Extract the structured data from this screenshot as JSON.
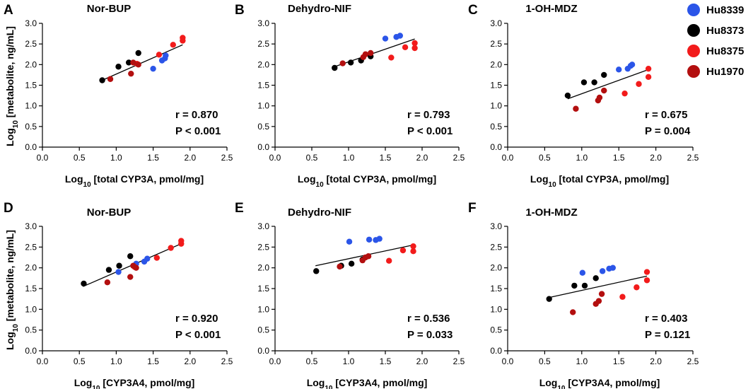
{
  "legend": {
    "items": [
      {
        "label": "Hu8339",
        "color": "#2b55e8"
      },
      {
        "label": "Hu8373",
        "color": "#000000"
      },
      {
        "label": "Hu8375",
        "color": "#f21b1b"
      },
      {
        "label": "Hu1970",
        "color": "#b30f0f"
      }
    ]
  },
  "axis_labels": {
    "y_prefix": "Log",
    "y_sub": "10",
    "y_rest": " [metabolite, ng/mL]",
    "x_total_prefix": "Log",
    "x_total_sub": "10",
    "x_total_rest": " [total CYP3A, pmol/mg]",
    "x_cyp3a4_prefix": "Log",
    "x_cyp3a4_sub": "10",
    "x_cyp3a4_rest": " [CYP3A4, pmol/mg]"
  },
  "chart_data": [
    {
      "type": "scatter",
      "letter": "A",
      "title": "Nor-BUP",
      "xlabel": "Log10 [total CYP3A, pmol/mg]",
      "ylabel": "Log10 [metabolite, ng/mL]",
      "xlim": [
        0,
        2.5
      ],
      "ylim": [
        0,
        3.0
      ],
      "xticks": [
        "0.0",
        "0.5",
        "1.0",
        "1.5",
        "2.0",
        "2.5"
      ],
      "yticks": [
        "0.0",
        "0.5",
        "1.0",
        "1.5",
        "2.0",
        "2.5",
        "3.0"
      ],
      "fit": [
        [
          0.81,
          1.62
        ],
        [
          1.9,
          2.48
        ]
      ],
      "stats": [
        "r = 0.870",
        "P <  0.001"
      ],
      "series": [
        {
          "name": "Hu8339",
          "color": "#2b55e8",
          "x": [
            1.5,
            1.62,
            1.66,
            1.67
          ],
          "y": [
            1.9,
            2.1,
            2.15,
            2.22
          ]
        },
        {
          "name": "Hu8373",
          "color": "#000000",
          "x": [
            0.81,
            1.03,
            1.17,
            1.3
          ],
          "y": [
            1.62,
            1.95,
            2.05,
            2.28
          ]
        },
        {
          "name": "Hu8375",
          "color": "#f21b1b",
          "x": [
            1.28,
            1.58,
            1.77,
            1.9,
            1.9
          ],
          "y": [
            2.02,
            2.24,
            2.48,
            2.58,
            2.65
          ]
        },
        {
          "name": "Hu1970",
          "color": "#b30f0f",
          "x": [
            0.92,
            1.2,
            1.23,
            1.3
          ],
          "y": [
            1.65,
            1.78,
            2.05,
            2.0
          ]
        }
      ]
    },
    {
      "type": "scatter",
      "letter": "B",
      "title": "Dehydro-NIF",
      "xlabel": "Log10 [total CYP3A, pmol/mg]",
      "ylabel": "Log10 [metabolite, ng/mL]",
      "xlim": [
        0,
        2.5
      ],
      "ylim": [
        0,
        3.0
      ],
      "xticks": [
        "0.0",
        "0.5",
        "1.0",
        "1.5",
        "2.0",
        "2.5"
      ],
      "yticks": [
        "0.0",
        "0.5",
        "1.0",
        "1.5",
        "2.0",
        "2.5",
        "3.0"
      ],
      "fit": [
        [
          0.81,
          1.95
        ],
        [
          1.9,
          2.62
        ]
      ],
      "stats": [
        "r = 0.793",
        "P < 0.001"
      ],
      "series": [
        {
          "name": "Hu8339",
          "color": "#2b55e8",
          "x": [
            1.5,
            1.65,
            1.7
          ],
          "y": [
            2.63,
            2.67,
            2.7
          ]
        },
        {
          "name": "Hu8373",
          "color": "#000000",
          "x": [
            0.81,
            1.03,
            1.17,
            1.3
          ],
          "y": [
            1.92,
            2.05,
            2.1,
            2.2
          ]
        },
        {
          "name": "Hu8375",
          "color": "#f21b1b",
          "x": [
            1.58,
            1.77,
            1.9,
            1.9
          ],
          "y": [
            2.17,
            2.42,
            2.4,
            2.52
          ]
        },
        {
          "name": "Hu1970",
          "color": "#b30f0f",
          "x": [
            0.92,
            1.2,
            1.23,
            1.3
          ],
          "y": [
            2.03,
            2.18,
            2.25,
            2.28
          ]
        }
      ]
    },
    {
      "type": "scatter",
      "letter": "C",
      "title": "1-OH-MDZ",
      "xlabel": "Log10 [total CYP3A, pmol/mg]",
      "ylabel": "Log10 [metabolite, ng/mL]",
      "xlim": [
        0,
        2.5
      ],
      "ylim": [
        0,
        3.0
      ],
      "xticks": [
        "0.0",
        "0.5",
        "1.0",
        "1.5",
        "2.0",
        "2.5"
      ],
      "yticks": [
        "0.0",
        "0.5",
        "1.0",
        "1.5",
        "2.0",
        "2.5",
        "3.0"
      ],
      "fit": [
        [
          0.81,
          1.17
        ],
        [
          1.9,
          1.88
        ]
      ],
      "stats": [
        "r = 0.675",
        "P = 0.004"
      ],
      "series": [
        {
          "name": "Hu8339",
          "color": "#2b55e8",
          "x": [
            1.5,
            1.62,
            1.66,
            1.68
          ],
          "y": [
            1.88,
            1.9,
            1.97,
            2.0
          ]
        },
        {
          "name": "Hu8373",
          "color": "#000000",
          "x": [
            0.81,
            1.03,
            1.17,
            1.3
          ],
          "y": [
            1.25,
            1.57,
            1.57,
            1.75
          ]
        },
        {
          "name": "Hu8375",
          "color": "#f21b1b",
          "x": [
            1.58,
            1.77,
            1.9,
            1.9
          ],
          "y": [
            1.3,
            1.53,
            1.7,
            1.9
          ]
        },
        {
          "name": "Hu1970",
          "color": "#b30f0f",
          "x": [
            0.92,
            1.22,
            1.24,
            1.3
          ],
          "y": [
            0.93,
            1.13,
            1.2,
            1.37
          ]
        }
      ]
    },
    {
      "type": "scatter",
      "letter": "D",
      "title": "Nor-BUP",
      "xlabel": "Log10 [CYP3A4, pmol/mg]",
      "ylabel": "Log10 [metabolite, ng/mL]",
      "xlim": [
        0,
        2.5
      ],
      "ylim": [
        0,
        3.0
      ],
      "xticks": [
        "0.0",
        "0.5",
        "1.0",
        "1.5",
        "2.0",
        "2.5"
      ],
      "yticks": [
        "0.0",
        "0.5",
        "1.0",
        "1.5",
        "2.0",
        "2.5",
        "3.0"
      ],
      "fit": [
        [
          0.55,
          1.55
        ],
        [
          1.88,
          2.58
        ]
      ],
      "stats": [
        "r = 0.920",
        "P <  0.001"
      ],
      "series": [
        {
          "name": "Hu8339",
          "color": "#2b55e8",
          "x": [
            1.03,
            1.27,
            1.38,
            1.42
          ],
          "y": [
            1.9,
            2.1,
            2.15,
            2.22
          ]
        },
        {
          "name": "Hu8373",
          "color": "#000000",
          "x": [
            0.56,
            0.9,
            1.04,
            1.19
          ],
          "y": [
            1.62,
            1.95,
            2.05,
            2.28
          ]
        },
        {
          "name": "Hu8375",
          "color": "#f21b1b",
          "x": [
            1.25,
            1.55,
            1.74,
            1.88,
            1.88
          ],
          "y": [
            2.02,
            2.24,
            2.48,
            2.58,
            2.65
          ]
        },
        {
          "name": "Hu1970",
          "color": "#b30f0f",
          "x": [
            0.88,
            1.19,
            1.23,
            1.27
          ],
          "y": [
            1.65,
            1.78,
            2.05,
            2.0
          ]
        }
      ]
    },
    {
      "type": "scatter",
      "letter": "E",
      "title": "Dehydro-NIF",
      "xlabel": "Log10 [CYP3A4, pmol/mg]",
      "ylabel": "Log10 [metabolite, ng/mL]",
      "xlim": [
        0,
        2.5
      ],
      "ylim": [
        0,
        3.0
      ],
      "xticks": [
        "0.0",
        "0.5",
        "1.0",
        "1.5",
        "2.0",
        "2.5"
      ],
      "yticks": [
        "0.0",
        "0.5",
        "1.0",
        "1.5",
        "2.0",
        "2.5",
        "3.0"
      ],
      "fit": [
        [
          0.55,
          2.05
        ],
        [
          1.88,
          2.55
        ]
      ],
      "stats": [
        "r = 0.536",
        "P = 0.033"
      ],
      "series": [
        {
          "name": "Hu8339",
          "color": "#2b55e8",
          "x": [
            1.01,
            1.28,
            1.37,
            1.42
          ],
          "y": [
            2.63,
            2.68,
            2.67,
            2.7
          ]
        },
        {
          "name": "Hu8373",
          "color": "#000000",
          "x": [
            0.56,
            0.9,
            1.04,
            1.19
          ],
          "y": [
            1.92,
            2.05,
            2.1,
            2.2
          ]
        },
        {
          "name": "Hu8375",
          "color": "#f21b1b",
          "x": [
            1.55,
            1.74,
            1.88,
            1.88
          ],
          "y": [
            2.17,
            2.42,
            2.4,
            2.52
          ]
        },
        {
          "name": "Hu1970",
          "color": "#b30f0f",
          "x": [
            0.88,
            1.19,
            1.23,
            1.27
          ],
          "y": [
            2.03,
            2.18,
            2.25,
            2.28
          ]
        }
      ]
    },
    {
      "type": "scatter",
      "letter": "F",
      "title": "1-OH-MDZ",
      "xlabel": "Log10 [CYP3A4, pmol/mg]",
      "ylabel": "Log10 [metabolite, ng/mL]",
      "xlim": [
        0,
        2.5
      ],
      "ylim": [
        0,
        3.0
      ],
      "xticks": [
        "0.0",
        "0.5",
        "1.0",
        "1.5",
        "2.0",
        "2.5"
      ],
      "yticks": [
        "0.0",
        "0.5",
        "1.0",
        "1.5",
        "2.0",
        "2.5",
        "3.0"
      ],
      "fit": [
        [
          0.55,
          1.28
        ],
        [
          1.88,
          1.8
        ]
      ],
      "stats": [
        "r = 0.403",
        "P = 0.121"
      ],
      "series": [
        {
          "name": "Hu8339",
          "color": "#2b55e8",
          "x": [
            1.01,
            1.28,
            1.37,
            1.42
          ],
          "y": [
            1.88,
            1.92,
            1.98,
            2.0
          ]
        },
        {
          "name": "Hu8373",
          "color": "#000000",
          "x": [
            0.56,
            0.9,
            1.04,
            1.19
          ],
          "y": [
            1.25,
            1.57,
            1.57,
            1.75
          ]
        },
        {
          "name": "Hu8375",
          "color": "#f21b1b",
          "x": [
            1.55,
            1.74,
            1.88,
            1.88
          ],
          "y": [
            1.3,
            1.53,
            1.7,
            1.9
          ]
        },
        {
          "name": "Hu1970",
          "color": "#b30f0f",
          "x": [
            0.88,
            1.19,
            1.23,
            1.27
          ],
          "y": [
            0.93,
            1.13,
            1.2,
            1.37
          ]
        }
      ]
    }
  ]
}
